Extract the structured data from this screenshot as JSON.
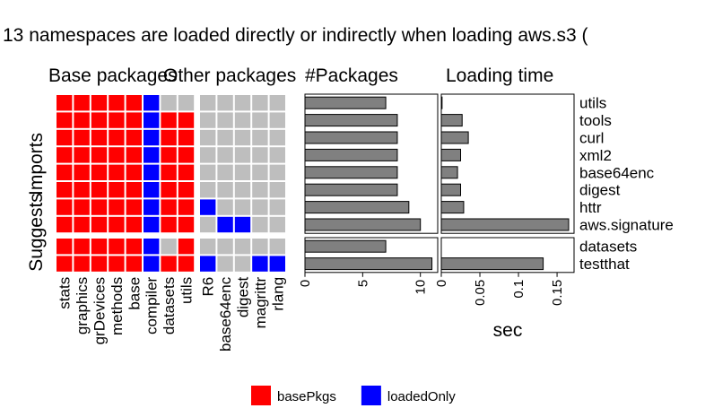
{
  "chart_data": {
    "type": "heatmap",
    "title": "13 namespaces are loaded directly or indirectly when loading aws.s3 (",
    "colors": {
      "basePkgs": "#ff0000",
      "loadedOnly": "#0000ff",
      "none": "#bebebe",
      "bar": "#808080"
    },
    "facets": {
      "base_panel": "Base packages",
      "other_panel": "Other packages",
      "count_panel": "#Packages",
      "time_panel": "Loading time",
      "group_top": "Imports",
      "group_bottom": "Suggests"
    },
    "base_packages": [
      "stats",
      "graphics",
      "grDevices",
      "methods",
      "base",
      "compiler",
      "datasets",
      "utils"
    ],
    "other_packages": [
      "R6",
      "base64enc",
      "digest",
      "magrittr",
      "rlang"
    ],
    "rows": {
      "Imports": [
        "utils",
        "tools",
        "curl",
        "xml2",
        "base64enc",
        "digest",
        "httr",
        "aws.signature"
      ],
      "Suggests": [
        "datasets",
        "testthat"
      ]
    },
    "grid": {
      "Imports": {
        "base": [
          [
            "basePkgs",
            "basePkgs",
            "basePkgs",
            "basePkgs",
            "basePkgs",
            "loadedOnly",
            "none",
            "none"
          ],
          [
            "basePkgs",
            "basePkgs",
            "basePkgs",
            "basePkgs",
            "basePkgs",
            "loadedOnly",
            "basePkgs",
            "basePkgs"
          ],
          [
            "basePkgs",
            "basePkgs",
            "basePkgs",
            "basePkgs",
            "basePkgs",
            "loadedOnly",
            "basePkgs",
            "basePkgs"
          ],
          [
            "basePkgs",
            "basePkgs",
            "basePkgs",
            "basePkgs",
            "basePkgs",
            "loadedOnly",
            "basePkgs",
            "basePkgs"
          ],
          [
            "basePkgs",
            "basePkgs",
            "basePkgs",
            "basePkgs",
            "basePkgs",
            "loadedOnly",
            "basePkgs",
            "basePkgs"
          ],
          [
            "basePkgs",
            "basePkgs",
            "basePkgs",
            "basePkgs",
            "basePkgs",
            "loadedOnly",
            "basePkgs",
            "basePkgs"
          ],
          [
            "basePkgs",
            "basePkgs",
            "basePkgs",
            "basePkgs",
            "basePkgs",
            "loadedOnly",
            "basePkgs",
            "basePkgs"
          ],
          [
            "basePkgs",
            "basePkgs",
            "basePkgs",
            "basePkgs",
            "basePkgs",
            "loadedOnly",
            "basePkgs",
            "basePkgs"
          ]
        ],
        "other": [
          [
            "none",
            "none",
            "none",
            "none",
            "none"
          ],
          [
            "none",
            "none",
            "none",
            "none",
            "none"
          ],
          [
            "none",
            "none",
            "none",
            "none",
            "none"
          ],
          [
            "none",
            "none",
            "none",
            "none",
            "none"
          ],
          [
            "none",
            "none",
            "none",
            "none",
            "none"
          ],
          [
            "none",
            "none",
            "none",
            "none",
            "none"
          ],
          [
            "loadedOnly",
            "none",
            "none",
            "none",
            "none"
          ],
          [
            "none",
            "loadedOnly",
            "loadedOnly",
            "none",
            "none"
          ]
        ]
      },
      "Suggests": {
        "base": [
          [
            "basePkgs",
            "basePkgs",
            "basePkgs",
            "basePkgs",
            "basePkgs",
            "loadedOnly",
            "none",
            "basePkgs"
          ],
          [
            "basePkgs",
            "basePkgs",
            "basePkgs",
            "basePkgs",
            "basePkgs",
            "loadedOnly",
            "basePkgs",
            "basePkgs"
          ]
        ],
        "other": [
          [
            "none",
            "none",
            "none",
            "none",
            "none"
          ],
          [
            "loadedOnly",
            "none",
            "none",
            "loadedOnly",
            "loadedOnly"
          ]
        ]
      }
    },
    "num_packages": {
      "Imports": [
        7,
        8,
        8,
        8,
        8,
        8,
        9,
        10
      ],
      "Suggests": [
        7,
        11
      ]
    },
    "num_axis": {
      "xlim": [
        0,
        11.5
      ],
      "ticks": [
        0,
        5,
        10
      ],
      "tick_labels": [
        "0",
        "5",
        "10"
      ]
    },
    "loading_time": {
      "Imports": [
        0.001,
        0.027,
        0.035,
        0.025,
        0.021,
        0.025,
        0.029,
        0.165
      ],
      "Suggests": [
        0,
        0.132
      ]
    },
    "time_axis": {
      "xlim": [
        0,
        0.172
      ],
      "ticks": [
        0,
        0.05,
        0.1,
        0.15
      ],
      "tick_labels": [
        "0",
        "0.05",
        "0.1",
        "0.15"
      ],
      "xlabel": "sec"
    },
    "legend": [
      {
        "key": "basePkgs",
        "label": "basePkgs"
      },
      {
        "key": "loadedOnly",
        "label": "loadedOnly"
      }
    ]
  }
}
